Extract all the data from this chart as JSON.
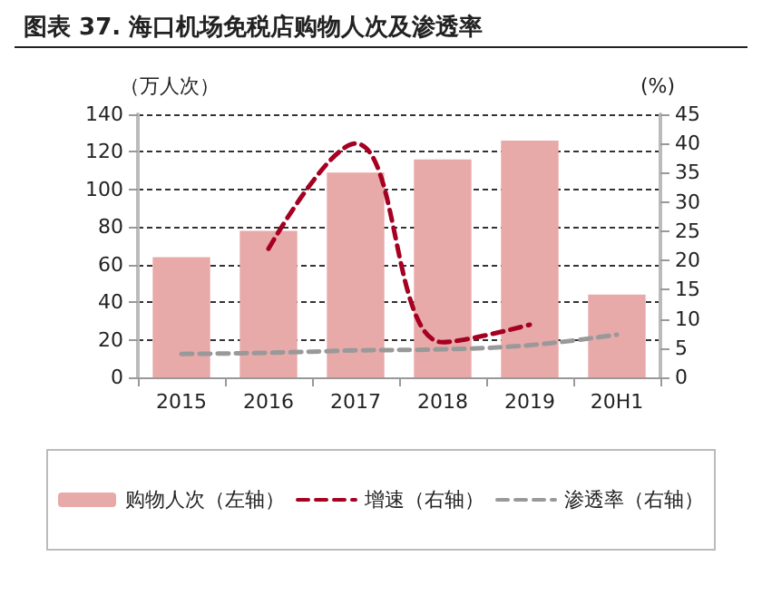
{
  "chart_data": {
    "type": "bar",
    "title": "图表 37. 海口机场免税店购物人次及渗透率",
    "ylabel": "（万人次）",
    "y2label": "(%)",
    "categories": [
      "2015",
      "2016",
      "2017",
      "2018",
      "2019",
      "20H1"
    ],
    "series": [
      {
        "name": "购物人次（左轴）",
        "color": "#e8a9a9",
        "values": [
          64,
          78,
          109,
          116,
          126,
          44
        ]
      },
      {
        "name": "增速（右轴）",
        "type": "line",
        "axis": "y2",
        "color": "#a50021",
        "line_style": "dashed",
        "values": [
          null,
          22,
          40,
          6,
          9,
          null
        ]
      },
      {
        "name": "渗透率（右轴）",
        "type": "line",
        "axis": "y2",
        "color": "#999999",
        "line_style": "dashed",
        "values": [
          4,
          4.2,
          4.6,
          4.8,
          5.5,
          7.3
        ]
      }
    ],
    "ylim": [
      0,
      140
    ],
    "yticks": [
      0,
      20,
      40,
      60,
      80,
      100,
      120,
      140
    ],
    "y2lim": [
      0,
      45
    ],
    "y2ticks": [
      0,
      5,
      10,
      15,
      20,
      25,
      30,
      35,
      40,
      45
    ],
    "grid": "y",
    "legend": "bottom",
    "marker": "none"
  }
}
